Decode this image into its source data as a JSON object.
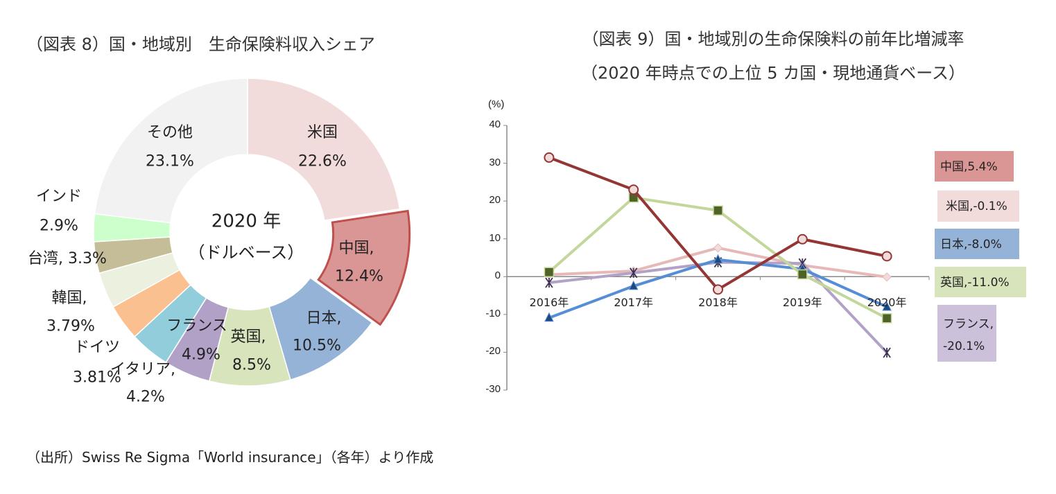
{
  "source": "（出所）Swiss Re Sigma「World insurance」（各年）より作成",
  "chart_data": [
    {
      "type": "pie",
      "title": "（図表 8）国・地域別　生命保険料収入シェア",
      "center_label": [
        "2020 年",
        "（ドルベース）"
      ],
      "categories": [
        "米国",
        "中国",
        "日本",
        "英国",
        "フランス",
        "イタリア",
        "ドイツ",
        "韓国",
        "台湾",
        "インド",
        "その他"
      ],
      "labels": [
        [
          "米国",
          "22.6%"
        ],
        [
          "中国,",
          "12.4%"
        ],
        [
          "日本,",
          "10.5%"
        ],
        [
          "英国,",
          "8.5%"
        ],
        [
          "フランス",
          "4.9%"
        ],
        [
          "イタリア,",
          "4.2%"
        ],
        [
          "ドイツ",
          "3.81%"
        ],
        [
          "韓国,",
          "3.79%"
        ],
        [
          "台湾, 3.3%"
        ],
        [
          "インド",
          "2.9%"
        ],
        [
          "その他",
          "23.1%"
        ]
      ],
      "values": [
        22.6,
        12.4,
        10.5,
        8.5,
        4.9,
        4.2,
        3.81,
        3.79,
        3.3,
        2.9,
        23.1
      ],
      "colors": [
        "#f2dcdb",
        "#da9694",
        "#95b3d7",
        "#d7e4bc",
        "#b2a1c7",
        "#92cddc",
        "#fac090",
        "#ebf1de",
        "#c4bd97",
        "#ccffcc",
        "#f2f2f2"
      ],
      "exploded": "中国"
    },
    {
      "type": "line",
      "title": [
        "（図表 9）国・地域別の生命保険料の前年比増減率",
        "（2020 年時点での上位 5 カ国・現地通貨ベース）"
      ],
      "ylabel": "(%)",
      "ylim": [
        -30,
        40
      ],
      "yticks": [
        40,
        30,
        20,
        10,
        0,
        -10,
        -20,
        -30
      ],
      "categories": [
        "2016年",
        "2017年",
        "2018年",
        "2019年",
        "2020年"
      ],
      "series": [
        {
          "name": "中国",
          "legend": "中国,5.4%",
          "values": [
            31.5,
            23.0,
            -3.4,
            9.9,
            5.4
          ],
          "color": "#943634",
          "marker": "circle",
          "legend_color": "#da9694"
        },
        {
          "name": "米国",
          "legend": "米国,-0.1%",
          "values": [
            0.5,
            1.5,
            7.6,
            3.0,
            -0.1
          ],
          "color": "#e6b9b8",
          "marker": "diamond",
          "legend_color": "#f2dcdb"
        },
        {
          "name": "日本",
          "legend": "日本,-8.0%",
          "values": [
            -10.9,
            -2.5,
            4.5,
            2.0,
            -8.0
          ],
          "color": "#558ed5",
          "marker": "triangle",
          "legend_color": "#95b3d7"
        },
        {
          "name": "英国",
          "legend": "英国,-11.0%",
          "values": [
            1.2,
            20.9,
            17.5,
            0.6,
            -11.0
          ],
          "color": "#c3d69b",
          "marker": "square",
          "legend_color": "#d7e4bc"
        },
        {
          "name": "フランス",
          "legend": [
            "フランス,",
            "-20.1%"
          ],
          "values": [
            -1.6,
            1.0,
            3.8,
            3.5,
            -20.1
          ],
          "color": "#b3a2c7",
          "marker": "star",
          "legend_color": "#ccc0da"
        }
      ]
    }
  ]
}
